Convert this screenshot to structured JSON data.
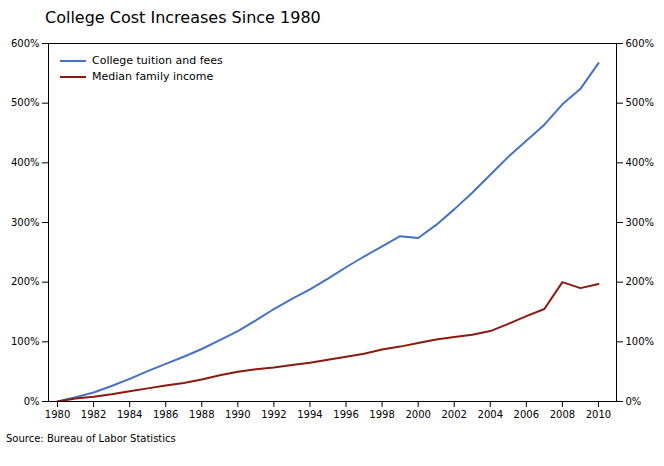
{
  "chart_data": {
    "type": "line",
    "title": "College Cost Increases Since 1980",
    "source": "Source: Bureau of Labor Statistics",
    "x": [
      1980,
      1981,
      1982,
      1983,
      1984,
      1985,
      1986,
      1987,
      1988,
      1989,
      1990,
      1991,
      1992,
      1993,
      1994,
      1995,
      1996,
      1997,
      1998,
      1999,
      2000,
      2001,
      2002,
      2003,
      2004,
      2005,
      2006,
      2007,
      2008,
      2009,
      2010
    ],
    "series": [
      {
        "name": "College tuition and fees",
        "color": "#4472C4",
        "values": [
          0,
          7,
          15,
          26,
          38,
          51,
          63,
          75,
          88,
          103,
          118,
          136,
          155,
          172,
          188,
          206,
          225,
          243,
          260,
          277,
          274,
          296,
          322,
          350,
          380,
          410,
          437,
          464,
          498,
          524,
          567
        ]
      },
      {
        "name": "Median family income",
        "color": "#8B1A0E",
        "values": [
          0,
          5,
          8,
          12,
          17,
          22,
          27,
          31,
          37,
          44,
          50,
          54,
          57,
          61,
          65,
          70,
          75,
          80,
          87,
          92,
          98,
          104,
          108,
          112,
          118,
          130,
          143,
          155,
          200,
          190,
          197
        ]
      }
    ],
    "xlim": [
      1979.5,
      2011
    ],
    "xticks": [
      1980,
      1982,
      1984,
      1986,
      1988,
      1990,
      1992,
      1994,
      1996,
      1998,
      2000,
      2002,
      2004,
      2006,
      2008,
      2010
    ],
    "ylim": [
      0,
      600
    ],
    "yticks": [
      {
        "value": 0,
        "label": "0%"
      },
      {
        "value": 100,
        "label": "100%"
      },
      {
        "value": 200,
        "label": "200%"
      },
      {
        "value": 300,
        "label": "300%"
      },
      {
        "value": 400,
        "label": "400%"
      },
      {
        "value": 500,
        "label": "500%"
      },
      {
        "value": 600,
        "label": "600%"
      }
    ],
    "grid": false,
    "legend": "upper left"
  }
}
